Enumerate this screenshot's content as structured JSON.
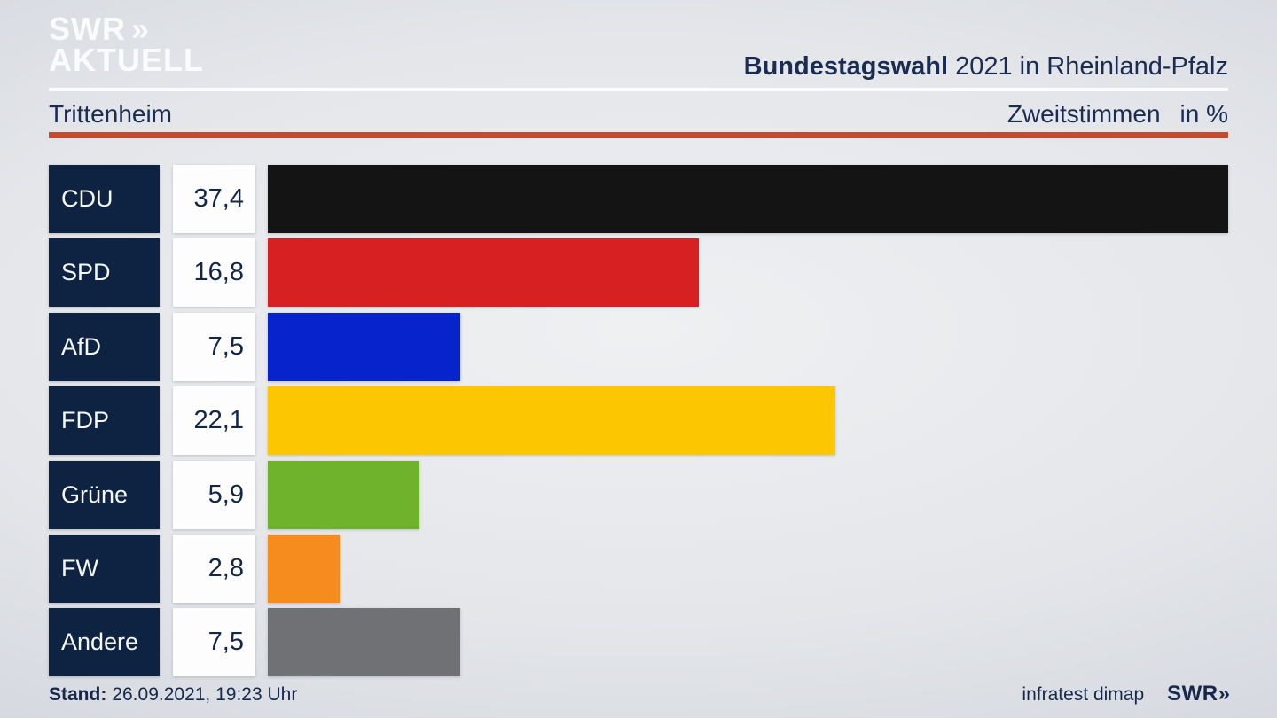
{
  "colors": {
    "background_center": "#eef0f2",
    "background_edge": "#c8ccd5",
    "navy_box": "#0e2342",
    "text_navy": "#1a2c52",
    "red_rule": "#c14b33",
    "value_box": "#fdfdfe",
    "logo_white": "#fafbfd"
  },
  "logo": {
    "line1": "SWR",
    "chevron": "»",
    "line2": "AKTUELL"
  },
  "header": {
    "title_bold": "Bundestagswahl",
    "title_rest": "2021 in Rheinland-Pfalz"
  },
  "subheader": {
    "municipality": "Trittenheim",
    "vote_type": "Zweitstimmen",
    "unit": "in %"
  },
  "chart_data": {
    "type": "bar",
    "orientation": "horizontal",
    "title": "Bundestagswahl 2021 in Rheinland-Pfalz — Trittenheim — Zweitstimmen in %",
    "categories": [
      "CDU",
      "SPD",
      "AfD",
      "FDP",
      "Grüne",
      "FW",
      "Andere"
    ],
    "values": [
      37.4,
      16.8,
      7.5,
      22.1,
      5.9,
      2.8,
      7.5
    ],
    "value_labels": [
      "37,4",
      "16,8",
      "7,5",
      "22,1",
      "5,9",
      "2,8",
      "7,5"
    ],
    "bar_colors": [
      "#141414",
      "#d62021",
      "#0724cc",
      "#fcc700",
      "#6fb22b",
      "#f78c1e",
      "#6f7174"
    ],
    "xlim": [
      0,
      37.4
    ],
    "unit": "%",
    "grid": false,
    "legend": "none"
  },
  "footer": {
    "stand_label": "Stand:",
    "stand_value": "26.09.2021, 19:23 Uhr",
    "source": "infratest dimap",
    "brand": "SWR",
    "brand_chevron": "»"
  }
}
